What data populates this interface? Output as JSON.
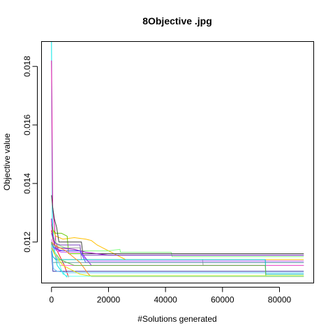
{
  "chart_data": {
    "type": "line",
    "title": "8Objective .jpg",
    "xlabel": "#Solutions generated",
    "ylabel": "Objective value",
    "xlim": [
      -3500,
      92000
    ],
    "ylim": [
      0.0106,
      0.01885
    ],
    "xticks": [
      0,
      20000,
      40000,
      60000,
      80000
    ],
    "xtick_labels": [
      "0",
      "20000",
      "40000",
      "60000",
      "80000"
    ],
    "yticks": [
      0.012,
      0.014,
      0.016,
      0.018
    ],
    "ytick_labels": [
      "0.012",
      "0.014",
      "0.016",
      "0.018"
    ],
    "grid": false,
    "legend": false,
    "series": [
      {
        "color": "#00e5e5",
        "x": [
          0,
          300,
          700,
          1200,
          2000,
          3500,
          5500
        ],
        "y": [
          0.01885,
          0.0128,
          0.0122,
          0.0116,
          0.0112,
          0.011,
          0.0108
        ]
      },
      {
        "color": "#e000a0",
        "x": [
          0,
          400,
          900,
          1500,
          2500,
          3200
        ],
        "y": [
          0.0182,
          0.0132,
          0.0127,
          0.012,
          0.0117,
          0.0117
        ]
      },
      {
        "color": "#ff1a1a",
        "x": [
          0,
          500,
          1500,
          3000,
          4500,
          6000
        ],
        "y": [
          0.0124,
          0.0121,
          0.0118,
          0.0115,
          0.0112,
          0.0108
        ]
      },
      {
        "color": "#ffc000",
        "x": [
          0,
          500,
          1500,
          4000,
          8000,
          12000,
          14000,
          16000,
          18000,
          20000,
          22000,
          24000,
          26000,
          88500
        ],
        "y": [
          0.0127,
          0.0124,
          0.0122,
          0.0121,
          0.01215,
          0.0121,
          0.01205,
          0.0119,
          0.0118,
          0.0117,
          0.0116,
          0.0115,
          0.0114,
          0.0114
        ]
      },
      {
        "color": "#66cc00",
        "x": [
          0,
          600,
          1500,
          3500,
          5500,
          6000,
          88500
        ],
        "y": [
          0.0126,
          0.0124,
          0.0123,
          0.0123,
          0.0122,
          0.0116,
          0.0116
        ]
      },
      {
        "color": "#80ff80",
        "x": [
          0,
          600,
          2000,
          5000,
          10000,
          12000,
          20000,
          24000,
          24200,
          42000,
          42300,
          88500
        ],
        "y": [
          0.0126,
          0.0122,
          0.0119,
          0.0118,
          0.0117,
          0.0117,
          0.0117,
          0.01175,
          0.01165,
          0.01165,
          0.0115,
          0.0115
        ]
      },
      {
        "color": "#404040",
        "x": [
          0,
          400,
          1000,
          1800,
          2600,
          10500,
          11000,
          88500
        ],
        "y": [
          0.0136,
          0.0132,
          0.0128,
          0.0125,
          0.012,
          0.012,
          0.0116,
          0.0116
        ]
      },
      {
        "color": "#9900cc",
        "x": [
          0,
          300,
          700,
          1200,
          2500,
          8000,
          12000,
          16000,
          20000,
          88500
        ],
        "y": [
          0.0128,
          0.0123,
          0.0121,
          0.0119,
          0.0118,
          0.01175,
          0.01165,
          0.0116,
          0.01155,
          0.01155
        ]
      },
      {
        "color": "#7a40bf",
        "x": [
          0,
          600,
          1500,
          3000,
          6000,
          10000,
          10500,
          88500
        ],
        "y": [
          0.0123,
          0.0121,
          0.01195,
          0.0119,
          0.0119,
          0.0119,
          0.01155,
          0.01155
        ]
      },
      {
        "color": "#a0a0a0",
        "x": [
          0,
          800,
          2000,
          4000,
          10000,
          10500,
          53000,
          53200,
          88500
        ],
        "y": [
          0.012,
          0.0119,
          0.0118,
          0.0118,
          0.0118,
          0.0114,
          0.0114,
          0.0112,
          0.0112
        ]
      },
      {
        "color": "#8a2be2",
        "x": [
          0,
          500,
          1500,
          3000,
          10000,
          14000,
          88500
        ],
        "y": [
          0.012,
          0.0118,
          0.0118,
          0.0117,
          0.0117,
          0.0112,
          0.0112
        ]
      },
      {
        "color": "#cc66ff",
        "x": [
          0,
          800,
          1800,
          3500,
          10000,
          12500,
          88500
        ],
        "y": [
          0.0121,
          0.0118,
          0.0117,
          0.01165,
          0.01165,
          0.01135,
          0.01135
        ]
      },
      {
        "color": "#5555ff",
        "x": [
          0,
          800,
          2000,
          4000,
          10000,
          12000,
          88500
        ],
        "y": [
          0.012,
          0.0118,
          0.01175,
          0.0117,
          0.0117,
          0.0113,
          0.0113
        ]
      },
      {
        "color": "#5f9ea0",
        "x": [
          0,
          400,
          1200,
          88500
        ],
        "y": [
          0.012,
          0.0113,
          0.0113,
          0.0113
        ]
      },
      {
        "color": "#ff66cc",
        "x": [
          0,
          600,
          1500,
          3000,
          88500
        ],
        "y": [
          0.0119,
          0.0117,
          0.0115,
          0.0112,
          0.0112
        ]
      },
      {
        "color": "#00bfbf",
        "x": [
          0,
          500,
          1500,
          6000,
          75000,
          75200,
          88500
        ],
        "y": [
          0.0118,
          0.0115,
          0.0114,
          0.0114,
          0.0114,
          0.0109,
          0.0109
        ]
      },
      {
        "color": "#3333aa",
        "x": [
          0,
          500,
          88500
        ],
        "y": [
          0.0117,
          0.011,
          0.011
        ]
      },
      {
        "color": "#66ccff",
        "x": [
          0,
          600,
          2000,
          6000,
          88500
        ],
        "y": [
          0.0119,
          0.0111,
          0.011,
          0.01095,
          0.01095
        ]
      },
      {
        "color": "#ff8c1a",
        "x": [
          0,
          1000,
          5000,
          10000,
          13000,
          14000,
          88500
        ],
        "y": [
          0.012,
          0.0119,
          0.0117,
          0.0113,
          0.0109,
          0.01082,
          0.01082
        ]
      },
      {
        "color": "#66bb44",
        "x": [
          0,
          800,
          3000,
          8000,
          12000,
          75000,
          75200,
          88500
        ],
        "y": [
          0.012,
          0.0117,
          0.0114,
          0.0112,
          0.0112,
          0.0112,
          0.01083,
          0.01083
        ]
      },
      {
        "color": "#e6e600",
        "x": [
          0,
          1000,
          4000,
          10000,
          13000,
          88500
        ],
        "y": [
          0.0118,
          0.0116,
          0.0112,
          0.0109,
          0.01085,
          0.01085
        ]
      },
      {
        "color": "#66ffee",
        "x": [
          0,
          1500,
          4000,
          6000,
          88500
        ],
        "y": [
          0.0119,
          0.0116,
          0.0109,
          0.01083,
          0.01083
        ]
      }
    ]
  }
}
